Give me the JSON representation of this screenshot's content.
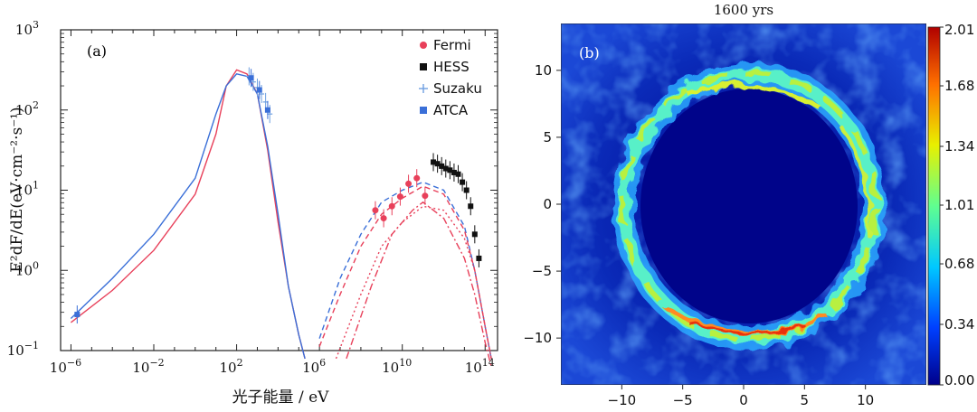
{
  "chart_data": [
    {
      "type": "scatter",
      "panel_label": "(a)",
      "xlabel": "光子能量 / eV",
      "ylabel": "E²dF/dE(eV·cm⁻²·s⁻¹)",
      "xscale": "log",
      "yscale": "log",
      "xlim_log10": [
        -6.5,
        14.6
      ],
      "ylim_log10": [
        -1,
        3
      ],
      "x_ticks": [
        {
          "exp": -6,
          "label_base": "10",
          "label_exp": "−6"
        },
        {
          "exp": -2,
          "label_base": "10",
          "label_exp": "−2"
        },
        {
          "exp": 2,
          "label_base": "10",
          "label_exp": "2"
        },
        {
          "exp": 6,
          "label_base": "10",
          "label_exp": "6"
        },
        {
          "exp": 10,
          "label_base": "10",
          "label_exp": "10"
        },
        {
          "exp": 14,
          "label_base": "10",
          "label_exp": "14"
        }
      ],
      "y_ticks": [
        {
          "exp": -1,
          "label_base": "10",
          "label_exp": "−1"
        },
        {
          "exp": 0,
          "label_base": "10",
          "label_exp": "0"
        },
        {
          "exp": 1,
          "label_base": "10",
          "label_exp": "1"
        },
        {
          "exp": 2,
          "label_base": "10",
          "label_exp": "2"
        },
        {
          "exp": 3,
          "label_base": "10",
          "label_exp": "3"
        }
      ],
      "legend": [
        {
          "name": "Fermi",
          "color": "#e8405a",
          "marker": "circle"
        },
        {
          "name": "HESS",
          "color": "#111111",
          "marker": "square"
        },
        {
          "name": "Suzaku",
          "color": "#6fa0e0",
          "marker": "plus"
        },
        {
          "name": "ATCA",
          "color": "#3a6fd8",
          "marker": "square"
        }
      ],
      "curves": [
        {
          "name": "synchrotron-red",
          "color": "#e8405a",
          "dash": "",
          "points": [
            [
              -6,
              -0.65
            ],
            [
              -4,
              -0.25
            ],
            [
              -2,
              0.25
            ],
            [
              0,
              0.95
            ],
            [
              1,
              1.7
            ],
            [
              1.5,
              2.3
            ],
            [
              2,
              2.5
            ],
            [
              2.5,
              2.45
            ],
            [
              3,
              2.2
            ],
            [
              3.5,
              1.5
            ],
            [
              4,
              0.6
            ],
            [
              4.5,
              -0.2
            ],
            [
              5,
              -0.8
            ],
            [
              5.3,
              -1.1
            ]
          ]
        },
        {
          "name": "synchrotron-blue",
          "color": "#3a6fd8",
          "dash": "",
          "points": [
            [
              -6,
              -0.6
            ],
            [
              -4,
              -0.1
            ],
            [
              -2,
              0.45
            ],
            [
              0,
              1.15
            ],
            [
              1,
              1.95
            ],
            [
              1.5,
              2.3
            ],
            [
              2,
              2.45
            ],
            [
              2.5,
              2.42
            ],
            [
              3,
              2.2
            ],
            [
              3.5,
              1.55
            ],
            [
              4,
              0.7
            ],
            [
              4.5,
              -0.2
            ],
            [
              5,
              -0.8
            ],
            [
              5.3,
              -1.1
            ]
          ]
        },
        {
          "name": "ic-blue-dashed",
          "color": "#3a6fd8",
          "dash": "6,4",
          "points": [
            [
              6,
              -0.85
            ],
            [
              7,
              -0.1
            ],
            [
              8,
              0.45
            ],
            [
              9,
              0.85
            ],
            [
              10,
              1.0
            ],
            [
              11,
              1.1
            ],
            [
              12,
              1.0
            ],
            [
              13,
              0.55
            ],
            [
              13.5,
              0.0
            ],
            [
              14,
              -0.7
            ],
            [
              14.3,
              -1.1
            ]
          ]
        },
        {
          "name": "ic-red-dashed",
          "color": "#e8405a",
          "dash": "6,4",
          "points": [
            [
              6,
              -0.95
            ],
            [
              7,
              -0.3
            ],
            [
              8,
              0.3
            ],
            [
              9,
              0.7
            ],
            [
              10,
              0.9
            ],
            [
              11,
              1.05
            ],
            [
              12,
              0.95
            ],
            [
              13,
              0.5
            ],
            [
              13.5,
              0.0
            ],
            [
              14,
              -0.7
            ],
            [
              14.3,
              -1.1
            ]
          ]
        },
        {
          "name": "ic-red-dotted",
          "color": "#e8405a",
          "dash": "2,3",
          "points": [
            [
              6.8,
              -1.1
            ],
            [
              8,
              -0.3
            ],
            [
              9,
              0.3
            ],
            [
              10,
              0.6
            ],
            [
              11,
              0.8
            ],
            [
              12,
              0.75
            ],
            [
              13,
              0.4
            ],
            [
              13.5,
              0.0
            ],
            [
              14,
              -0.7
            ],
            [
              14.3,
              -1.1
            ]
          ]
        },
        {
          "name": "pion-red-dashdot",
          "color": "#e8405a",
          "dash": "8,3,2,3",
          "points": [
            [
              7.3,
              -1.1
            ],
            [
              8.5,
              -0.2
            ],
            [
              9.5,
              0.45
            ],
            [
              10.5,
              0.75
            ],
            [
              11,
              0.85
            ],
            [
              12,
              0.65
            ],
            [
              13,
              0.15
            ],
            [
              13.5,
              -0.3
            ],
            [
              14,
              -0.9
            ],
            [
              14.3,
              -1.2
            ]
          ]
        }
      ],
      "series": [
        {
          "name": "Fermi",
          "points": [
            [
              8.7,
              0.75
            ],
            [
              9.1,
              0.65
            ],
            [
              9.5,
              0.8
            ],
            [
              9.9,
              0.92
            ],
            [
              10.3,
              1.08
            ],
            [
              10.7,
              1.15
            ],
            [
              11.1,
              0.93
            ]
          ]
        },
        {
          "name": "HESS",
          "points": [
            [
              11.5,
              1.35
            ],
            [
              11.7,
              1.33
            ],
            [
              11.9,
              1.3
            ],
            [
              12.1,
              1.27
            ],
            [
              12.3,
              1.25
            ],
            [
              12.5,
              1.22
            ],
            [
              12.7,
              1.2
            ],
            [
              12.9,
              1.1
            ],
            [
              13.1,
              1.0
            ],
            [
              13.3,
              0.8
            ],
            [
              13.5,
              0.45
            ],
            [
              13.7,
              0.15
            ]
          ]
        },
        {
          "name": "Suzaku",
          "points": [
            [
              2.6,
              2.42
            ],
            [
              2.8,
              2.35
            ],
            [
              3.0,
              2.28
            ],
            [
              3.2,
              2.2
            ],
            [
              3.4,
              2.1
            ],
            [
              3.6,
              1.95
            ]
          ]
        },
        {
          "name": "ATCA",
          "points": [
            [
              -5.7,
              -0.55
            ],
            [
              2.7,
              2.4
            ],
            [
              3.1,
              2.25
            ],
            [
              3.5,
              2.0
            ]
          ]
        }
      ]
    },
    {
      "type": "heatmap",
      "panel_label": "(b)",
      "title": "1600 yrs",
      "xlim": [
        -15,
        15
      ],
      "ylim": [
        -13.5,
        13.5
      ],
      "x_ticks": [
        -10,
        -5,
        0,
        5,
        10
      ],
      "x_tick_labels": [
        "−10",
        "−5",
        "0",
        "5",
        "10"
      ],
      "y_ticks": [
        10,
        5,
        0,
        -5,
        -10
      ],
      "y_tick_labels": [
        "10",
        "5",
        "0",
        "−5",
        "−10"
      ],
      "ring_radius": 10.4,
      "colorbar": {
        "min": 0.0,
        "max": 2.01,
        "ticks": [
          2.01,
          1.68,
          1.34,
          1.01,
          0.68,
          0.34,
          0.0
        ],
        "tick_labels": [
          "2.01",
          "1.68",
          "1.34",
          "1.01",
          "0.68",
          "0.34",
          "0.00"
        ],
        "colors": [
          "#00008a",
          "#0040ff",
          "#00c8ff",
          "#60ff90",
          "#e8f000",
          "#ff7000",
          "#b00000"
        ]
      }
    }
  ]
}
